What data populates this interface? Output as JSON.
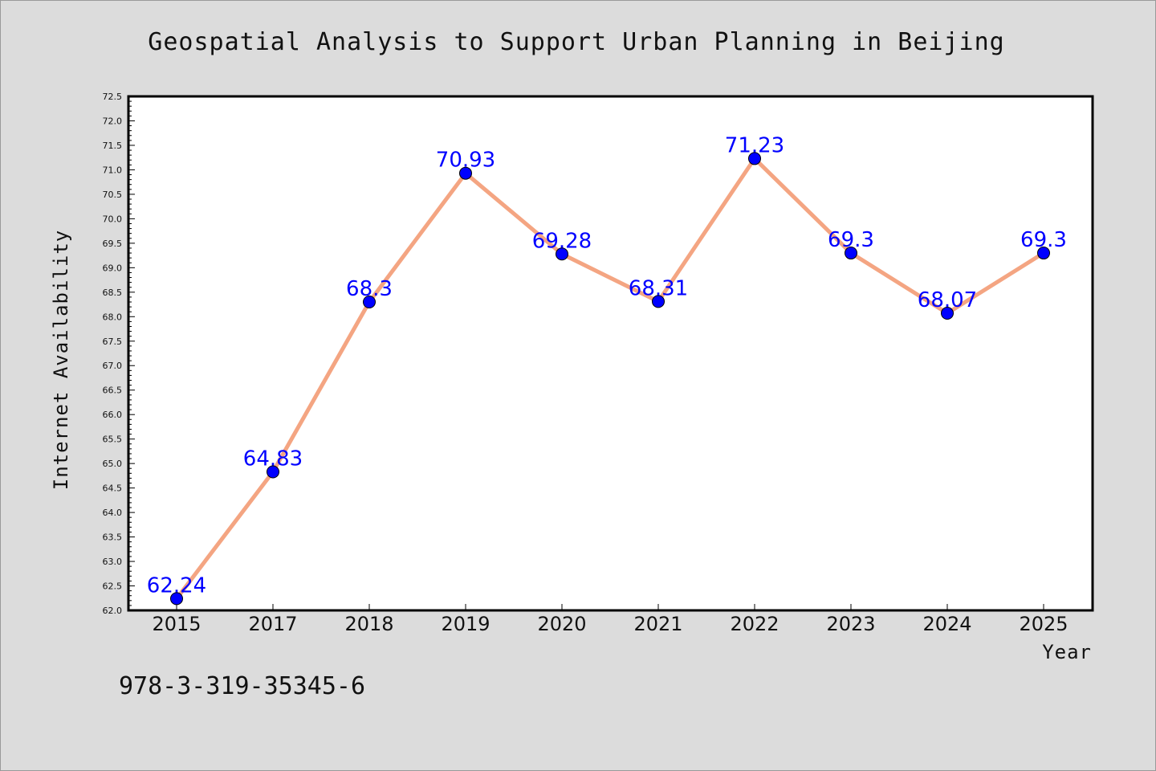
{
  "chart_data": {
    "type": "line",
    "title": "Geospatial Analysis to Support Urban Planning in Beijing",
    "xlabel": "Year",
    "ylabel": "Internet Availability",
    "categories": [
      "2015",
      "2017",
      "2018",
      "2019",
      "2020",
      "2021",
      "2022",
      "2023",
      "2024",
      "2025"
    ],
    "values": [
      62.24,
      64.83,
      68.3,
      70.93,
      69.28,
      68.31,
      71.23,
      69.3,
      68.07,
      69.3
    ],
    "data_labels": [
      "62.24",
      "64.83",
      "68.3",
      "70.93",
      "69.28",
      "68.31",
      "71.23",
      "69.3",
      "68.07",
      "69.3"
    ],
    "ylim": [
      62.0,
      72.5
    ],
    "yticks": [
      "62.0",
      "62.5",
      "63.0",
      "63.5",
      "64.0",
      "64.5",
      "65.0",
      "65.5",
      "66.0",
      "66.5",
      "67.0",
      "67.5",
      "68.0",
      "68.5",
      "69.0",
      "69.5",
      "70.0",
      "70.5",
      "71.0",
      "71.5",
      "72.0",
      "72.5"
    ],
    "grid": false,
    "legend": "none",
    "line_color": "#f4a582",
    "marker_color": "#0000ff",
    "label_color": "#0000ff"
  },
  "footer": {
    "code": "978-3-319-35345-6"
  }
}
